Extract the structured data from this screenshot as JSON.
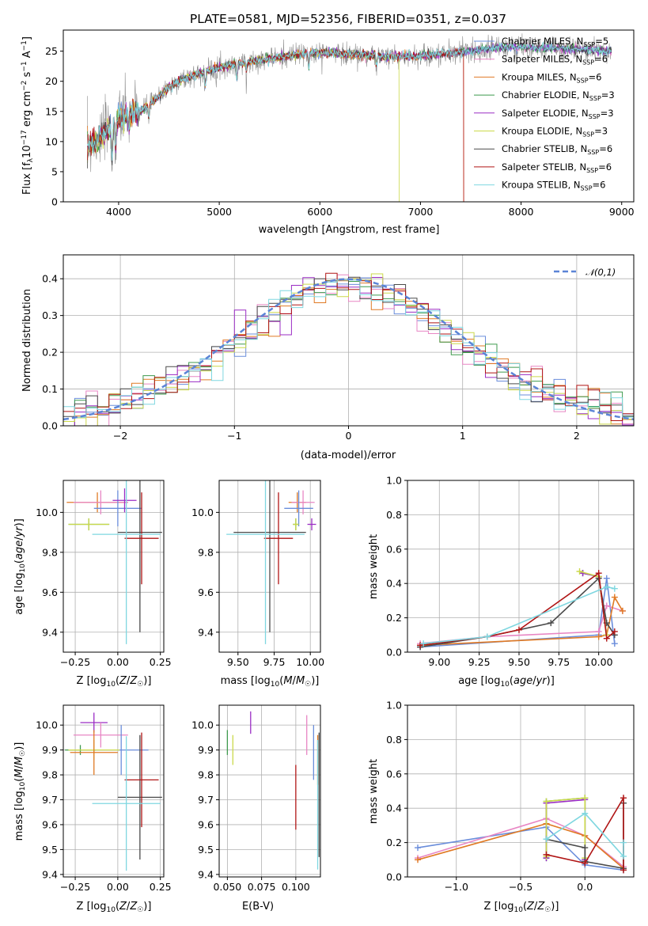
{
  "figure_title": "PLATE=0581, MJD=52356, FIBERID=0351, z=0.037",
  "colors": {
    "chabrier_miles": "#6a8ddb",
    "salpeter_miles": "#e886c4",
    "kroupa_miles": "#e07a24",
    "chabrier_elodie": "#3e9a4d",
    "salpeter_elodie": "#9b2dc4",
    "kroupa_elodie": "#cbd94a",
    "chabrier_stelib": "#4a4a4a",
    "salpeter_stelib": "#b01515",
    "kroupa_stelib": "#7fd7e0",
    "spectrum_data": "#8c8c8c",
    "normal_curve": "#5b84d6",
    "grid": "#b0b0b0"
  },
  "chart_data": [
    {
      "id": "spectrum",
      "type": "line",
      "title": "PLATE=0581, MJD=52356, FIBERID=0351, z=0.037",
      "xlabel": "wavelength [Angstrom, rest frame]",
      "ylabel": "Flux [f_λ 10^-17 erg cm^-2 s^-1 A^-1]",
      "xlim": [
        3450,
        9120
      ],
      "ylim": [
        0,
        28.5
      ],
      "xticks": [
        4000,
        5000,
        6000,
        7000,
        8000,
        9000
      ],
      "yticks": [
        0,
        5,
        10,
        15,
        20,
        25
      ],
      "grid": false,
      "legend_position": "top-right",
      "series": [
        {
          "name": "Chabrier MILES, N_SSP=5"
        },
        {
          "name": "Salpeter MILES, N_SSP=6"
        },
        {
          "name": "Kroupa MILES, N_SSP=6"
        },
        {
          "name": "Chabrier ELODIE, N_SSP=3"
        },
        {
          "name": "Salpeter ELODIE, N_SSP=3"
        },
        {
          "name": "Kroupa ELODIE, N_SSP=3"
        },
        {
          "name": "Chabrier STELIB, N_SSP=6"
        },
        {
          "name": "Salpeter STELIB, N_SSP=6"
        },
        {
          "name": "Kroupa STELIB, N_SSP=6"
        }
      ],
      "continuum": {
        "x": [
          3690,
          3800,
          3900,
          4000,
          4100,
          4200,
          4300,
          4400,
          4500,
          4600,
          4700,
          4800,
          4900,
          5000,
          5200,
          5400,
          5600,
          5800,
          6000,
          6200,
          6400,
          6600,
          6800,
          7000,
          7200,
          7400,
          7600,
          7800,
          8000,
          8200,
          8400,
          8600,
          8800,
          8900
        ],
        "y": [
          9,
          10.5,
          12,
          13.5,
          14.5,
          15,
          16,
          17.5,
          19,
          20,
          20.7,
          21.3,
          21.8,
          22.3,
          23,
          23.5,
          24,
          24.5,
          24.8,
          24.6,
          24.4,
          24.2,
          24.1,
          24.2,
          24.5,
          24.9,
          25.2,
          25.6,
          25.7,
          25.6,
          25.5,
          25.3,
          25.1,
          25.0
        ]
      },
      "model_end_x": {
        "Salpeter STELIB, N_SSP=6": 7430,
        "Kroupa MILES, N_SSP=6": 7430,
        "Kroupa ELODIE, N_SSP=3": 6790
      }
    },
    {
      "id": "residuals",
      "type": "histogram",
      "xlabel": "(data-model)/error",
      "ylabel": "Normed distribution",
      "xlim": [
        -2.5,
        2.5
      ],
      "ylim": [
        0,
        0.465
      ],
      "xticks": [
        -2,
        -1,
        0,
        1,
        2
      ],
      "yticks": [
        0,
        0.1,
        0.2,
        0.3,
        0.4
      ],
      "grid": true,
      "legend_position": "top-right",
      "legend": [
        "𝒩(0,1)"
      ],
      "bin_width": 0.1,
      "bins_left": -2.5
    },
    {
      "id": "age_vs_z",
      "type": "scatter",
      "xlabel": "Z [log10(Z/Z☉)]",
      "ylabel": "age [log10(age/yr)]",
      "xlim": [
        -0.32,
        0.27
      ],
      "ylim": [
        9.3,
        10.16
      ],
      "xticks": [
        -0.25,
        0,
        0.25
      ],
      "yticks": [
        9.4,
        9.6,
        9.8,
        10.0
      ],
      "grid": true,
      "points": [
        {
          "series": "Kroupa MILES",
          "x": -0.12,
          "y": 10.05,
          "xerr": 0.18,
          "yerr": 0.05
        },
        {
          "series": "Salpeter MILES",
          "x": -0.1,
          "y": 10.05,
          "xerr": 0.16,
          "yerr": 0.06
        },
        {
          "series": "Chabrier MILES",
          "x": 0.0,
          "y": 10.02,
          "xerr": 0.14,
          "yerr": 0.09
        },
        {
          "series": "Salpeter ELODIE",
          "x": 0.04,
          "y": 10.06,
          "xerr": 0.07,
          "yerr": 0.06
        },
        {
          "series": "Chabrier ELODIE",
          "x": -0.17,
          "y": 9.94,
          "xerr": 0.12,
          "yerr": 0.03
        },
        {
          "series": "Kroupa ELODIE",
          "x": -0.17,
          "y": 9.94,
          "xerr": 0.12,
          "yerr": 0.03
        },
        {
          "series": "Chabrier STELIB",
          "x": 0.13,
          "y": 9.9,
          "xerr": 0.13,
          "yerr": 0.5
        },
        {
          "series": "Salpeter STELIB",
          "x": 0.14,
          "y": 9.87,
          "xerr": 0.1,
          "yerr": 0.23
        },
        {
          "series": "Kroupa STELIB",
          "x": 0.05,
          "y": 9.89,
          "xerr": 0.2,
          "yerr": 0.55
        }
      ]
    },
    {
      "id": "age_vs_mass",
      "type": "scatter",
      "xlabel": "mass [log10(M/M☉)]",
      "ylabel": "",
      "xlim": [
        9.37,
        10.07
      ],
      "ylim": [
        9.3,
        10.16
      ],
      "xticks": [
        9.5,
        9.75,
        10.0
      ],
      "yticks": [
        9.4,
        9.6,
        9.8,
        10.0
      ],
      "grid": true,
      "points": [
        {
          "series": "Kroupa MILES",
          "x": 9.91,
          "y": 10.05,
          "xerr": 0.06,
          "yerr": 0.05
        },
        {
          "series": "Salpeter MILES",
          "x": 9.95,
          "y": 10.05,
          "xerr": 0.08,
          "yerr": 0.06
        },
        {
          "series": "Chabrier MILES",
          "x": 9.92,
          "y": 10.02,
          "xerr": 0.1,
          "yerr": 0.09
        },
        {
          "series": "Salpeter ELODIE",
          "x": 10.01,
          "y": 9.94,
          "xerr": 0.03,
          "yerr": 0.03
        },
        {
          "series": "Chabrier ELODIE",
          "x": 9.9,
          "y": 9.94,
          "xerr": 0.02,
          "yerr": 0.03
        },
        {
          "series": "Kroupa ELODIE",
          "x": 9.9,
          "y": 9.94,
          "xerr": 0.02,
          "yerr": 0.03
        },
        {
          "series": "Chabrier STELIB",
          "x": 9.72,
          "y": 9.9,
          "xerr": 0.25,
          "yerr": 0.5
        },
        {
          "series": "Salpeter STELIB",
          "x": 9.78,
          "y": 9.87,
          "xerr": 0.1,
          "yerr": 0.23
        },
        {
          "series": "Kroupa STELIB",
          "x": 9.69,
          "y": 9.89,
          "xerr": 0.27,
          "yerr": 0.55
        }
      ]
    },
    {
      "id": "weight_vs_age",
      "type": "line",
      "xlabel": "age [log10(age/yr)]",
      "ylabel": "mass weight",
      "xlim": [
        8.8,
        10.22
      ],
      "ylim": [
        0,
        1.0
      ],
      "xticks": [
        9.0,
        9.25,
        9.5,
        9.75,
        10.0
      ],
      "yticks": [
        0.0,
        0.2,
        0.4,
        0.6,
        0.8,
        1.0
      ],
      "grid": true,
      "series": [
        {
          "series": "Chabrier MILES",
          "x": [
            8.88,
            10.0,
            10.05,
            10.1
          ],
          "y": [
            0.03,
            0.1,
            0.43,
            0.05
          ]
        },
        {
          "series": "Salpeter MILES",
          "x": [
            8.88,
            9.3,
            10.0,
            10.05,
            10.15
          ],
          "y": [
            0.05,
            0.09,
            0.12,
            0.27,
            0.24
          ]
        },
        {
          "series": "Kroupa MILES",
          "x": [
            8.88,
            10.0,
            10.05,
            10.1,
            10.15
          ],
          "y": [
            0.04,
            0.09,
            0.1,
            0.32,
            0.24
          ]
        },
        {
          "series": "Chabrier ELODIE",
          "x": [
            9.9,
            10.0,
            10.05
          ],
          "y": [
            0.46,
            0.44,
            0.1
          ]
        },
        {
          "series": "Salpeter ELODIE",
          "x": [
            9.9,
            10.0,
            10.05
          ],
          "y": [
            0.46,
            0.44,
            0.1
          ]
        },
        {
          "series": "Kroupa ELODIE",
          "x": [
            9.88,
            10.0,
            10.05
          ],
          "y": [
            0.47,
            0.44,
            0.1
          ]
        },
        {
          "series": "Chabrier STELIB",
          "x": [
            8.88,
            9.3,
            9.7,
            10.0,
            10.05,
            10.1
          ],
          "y": [
            0.03,
            0.09,
            0.17,
            0.43,
            0.17,
            0.1
          ]
        },
        {
          "series": "Salpeter STELIB",
          "x": [
            8.88,
            9.3,
            9.5,
            10.0,
            10.05,
            10.1
          ],
          "y": [
            0.04,
            0.09,
            0.13,
            0.46,
            0.08,
            0.12
          ]
        },
        {
          "series": "Kroupa STELIB",
          "x": [
            8.9,
            9.3,
            10.05,
            10.1
          ],
          "y": [
            0.05,
            0.09,
            0.38,
            0.37
          ]
        }
      ]
    },
    {
      "id": "mass_vs_z",
      "type": "scatter",
      "xlabel": "Z [log10(Z/Z☉)]",
      "ylabel": "mass [log10(M/M☉)]",
      "xlim": [
        -0.32,
        0.27
      ],
      "ylim": [
        9.39,
        10.08
      ],
      "xticks": [
        -0.25,
        0,
        0.25
      ],
      "yticks": [
        9.4,
        9.5,
        9.6,
        9.7,
        9.8,
        9.9,
        10.0
      ],
      "grid": true,
      "points": [
        {
          "series": "Salpeter ELODIE",
          "x": -0.14,
          "y": 10.01,
          "xerr": 0.08,
          "yerr": 0.04
        },
        {
          "series": "Salpeter MILES",
          "x": -0.1,
          "y": 9.96,
          "xerr": 0.16,
          "yerr": 0.05
        },
        {
          "series": "Chabrier MILES",
          "x": 0.02,
          "y": 9.9,
          "xerr": 0.16,
          "yerr": 0.1
        },
        {
          "series": "Chabrier ELODIE",
          "x": -0.22,
          "y": 9.9,
          "xerr": 0.09,
          "yerr": 0.02
        },
        {
          "series": "Kroupa ELODIE",
          "x": -0.14,
          "y": 9.9,
          "xerr": 0.15,
          "yerr": 0.04
        },
        {
          "series": "Kroupa MILES",
          "x": -0.14,
          "y": 9.89,
          "xerr": 0.14,
          "yerr": 0.09
        },
        {
          "series": "Chabrier STELIB",
          "x": 0.13,
          "y": 9.71,
          "xerr": 0.13,
          "yerr": 0.25
        },
        {
          "series": "Salpeter STELIB",
          "x": 0.14,
          "y": 9.78,
          "xerr": 0.1,
          "yerr": 0.19
        },
        {
          "series": "Kroupa STELIB",
          "x": 0.05,
          "y": 9.685,
          "xerr": 0.2,
          "yerr": 0.27
        }
      ]
    },
    {
      "id": "mass_vs_ebv",
      "type": "scatter",
      "xlabel": "E(B-V)",
      "ylabel": "",
      "xlim": [
        0.044,
        0.118
      ],
      "ylim": [
        9.39,
        10.08
      ],
      "xticks": [
        0.05,
        0.075,
        0.1
      ],
      "yticks": [
        9.4,
        9.5,
        9.6,
        9.7,
        9.8,
        9.9,
        10.0
      ],
      "grid": true,
      "points": [
        {
          "series": "Salpeter ELODIE",
          "x": 0.067,
          "y": 10.01,
          "xerr": 0,
          "yerr": 0.045
        },
        {
          "series": "Chabrier ELODIE",
          "x": 0.05,
          "y": 9.93,
          "xerr": 0,
          "yerr": 0.05
        },
        {
          "series": "Kroupa ELODIE",
          "x": 0.054,
          "y": 9.9,
          "xerr": 0,
          "yerr": 0.06
        },
        {
          "series": "Salpeter MILES",
          "x": 0.108,
          "y": 9.96,
          "xerr": 0,
          "yerr": 0.08
        },
        {
          "series": "Chabrier MILES",
          "x": 0.113,
          "y": 9.89,
          "xerr": 0,
          "yerr": 0.11
        },
        {
          "series": "Kroupa MILES",
          "x": 0.116,
          "y": 9.86,
          "xerr": 0,
          "yerr": 0.1
        },
        {
          "series": "Chabrier STELIB",
          "x": 0.117,
          "y": 9.72,
          "xerr": 0,
          "yerr": 0.25
        },
        {
          "series": "Salpeter STELIB",
          "x": 0.1,
          "y": 9.71,
          "xerr": 0,
          "yerr": 0.13
        },
        {
          "series": "Kroupa STELIB",
          "x": 0.116,
          "y": 9.68,
          "xerr": 0,
          "yerr": 0.26
        }
      ]
    },
    {
      "id": "weight_vs_z",
      "type": "line",
      "xlabel": "Z [log10(Z/Z☉)]",
      "ylabel": "mass weight",
      "xlim": [
        -1.38,
        0.38
      ],
      "ylim": [
        0,
        1.0
      ],
      "xticks": [
        -1.0,
        -0.5,
        0.0
      ],
      "yticks": [
        0.0,
        0.2,
        0.4,
        0.6,
        0.8,
        1.0
      ],
      "grid": true,
      "series": [
        {
          "series": "Chabrier MILES",
          "x": [
            -1.3,
            -0.3,
            0.0,
            0.3
          ],
          "y": [
            0.17,
            0.29,
            0.07,
            0.04
          ]
        },
        {
          "series": "Salpeter MILES",
          "x": [
            -1.3,
            -0.3,
            0.0,
            0.3
          ],
          "y": [
            0.11,
            0.34,
            0.24,
            0.06
          ]
        },
        {
          "series": "Kroupa MILES",
          "x": [
            -1.3,
            -0.3,
            0.0,
            0.3
          ],
          "y": [
            0.1,
            0.31,
            0.24,
            0.05
          ]
        },
        {
          "series": "Chabrier ELODIE",
          "x": [
            -0.3,
            -0.3,
            0.0,
            0.0
          ],
          "y": [
            0.11,
            0.44,
            0.46,
            0.1
          ]
        },
        {
          "series": "Salpeter ELODIE",
          "x": [
            -0.3,
            -0.3,
            0.0,
            0.0
          ],
          "y": [
            0.11,
            0.43,
            0.45,
            0.1
          ]
        },
        {
          "series": "Kroupa ELODIE",
          "x": [
            -0.3,
            -0.3,
            0.0,
            0.0
          ],
          "y": [
            0.12,
            0.44,
            0.46,
            0.11
          ]
        },
        {
          "series": "Chabrier STELIB",
          "x": [
            -0.3,
            0.0,
            0.0,
            0.3,
            0.3
          ],
          "y": [
            0.22,
            0.17,
            0.09,
            0.05,
            0.43
          ]
        },
        {
          "series": "Salpeter STELIB",
          "x": [
            -0.3,
            0.0,
            0.3,
            0.3
          ],
          "y": [
            0.13,
            0.08,
            0.46,
            0.04
          ]
        },
        {
          "series": "Kroupa STELIB",
          "x": [
            -0.3,
            0.0,
            0.3,
            0.3
          ],
          "y": [
            0.22,
            0.37,
            0.12,
            0.2
          ]
        }
      ]
    }
  ]
}
